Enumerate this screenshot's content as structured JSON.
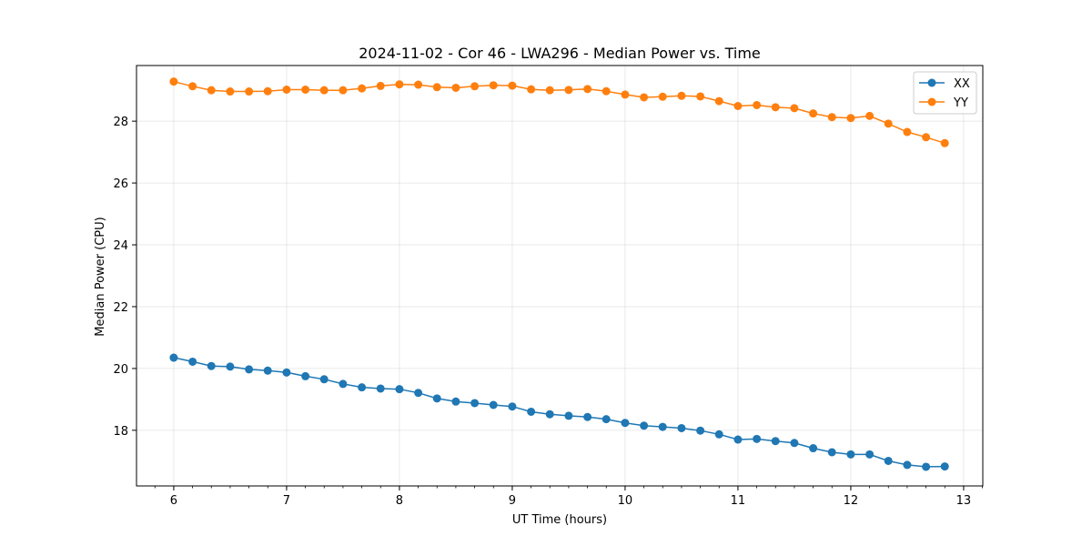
{
  "chart_data": {
    "type": "line",
    "title": "2024-11-02 - Cor 46 - LWA296 - Median Power vs. Time",
    "xlabel": "UT Time (hours)",
    "ylabel": "Median Power (CPU)",
    "xlim": [
      5.67,
      13.17
    ],
    "ylim": [
      16.2,
      29.8
    ],
    "xticks": [
      6,
      7,
      8,
      9,
      10,
      11,
      12,
      13
    ],
    "yticks": [
      18,
      20,
      22,
      24,
      26,
      28
    ],
    "grid": true,
    "legend_position": "top-right",
    "x": [
      6.0,
      6.167,
      6.333,
      6.5,
      6.667,
      6.833,
      7.0,
      7.167,
      7.333,
      7.5,
      7.667,
      7.833,
      8.0,
      8.167,
      8.333,
      8.5,
      8.667,
      8.833,
      9.0,
      9.167,
      9.333,
      9.5,
      9.667,
      9.833,
      10.0,
      10.167,
      10.333,
      10.5,
      10.667,
      10.833,
      11.0,
      11.167,
      11.333,
      11.5,
      11.667,
      11.833,
      12.0,
      12.167,
      12.333,
      12.5,
      12.667,
      12.833
    ],
    "series": [
      {
        "name": "XX",
        "color": "#1f77b4",
        "values": [
          20.35,
          20.22,
          20.08,
          20.06,
          19.97,
          19.93,
          19.87,
          19.75,
          19.65,
          19.5,
          19.39,
          19.35,
          19.33,
          19.21,
          19.03,
          18.93,
          18.88,
          18.82,
          18.77,
          18.6,
          18.52,
          18.47,
          18.43,
          18.36,
          18.24,
          18.15,
          18.11,
          18.07,
          17.99,
          17.87,
          17.7,
          17.72,
          17.65,
          17.59,
          17.42,
          17.29,
          17.22,
          17.22,
          17.01,
          16.88,
          16.82,
          16.83
        ]
      },
      {
        "name": "YY",
        "color": "#ff7f0e",
        "values": [
          29.28,
          29.13,
          29.0,
          28.96,
          28.96,
          28.97,
          29.02,
          29.02,
          29.0,
          29.0,
          29.06,
          29.14,
          29.19,
          29.18,
          29.1,
          29.08,
          29.13,
          29.16,
          29.15,
          29.03,
          29.0,
          29.01,
          29.04,
          28.97,
          28.86,
          28.77,
          28.79,
          28.82,
          28.8,
          28.65,
          28.49,
          28.52,
          28.45,
          28.42,
          28.25,
          28.13,
          28.1,
          28.17,
          27.92,
          27.65,
          27.48,
          27.29
        ]
      }
    ]
  }
}
